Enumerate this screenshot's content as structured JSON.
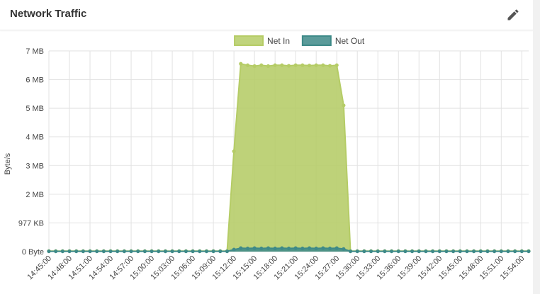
{
  "header": {
    "title": "Network Traffic",
    "edit_icon": "pencil-icon"
  },
  "chart_data": {
    "type": "area",
    "ylabel": "Byte/s",
    "ylim": [
      0,
      7000000
    ],
    "yticks": [
      {
        "value": 0,
        "label": "0 Byte"
      },
      {
        "value": 1000000,
        "label": "977 KB"
      },
      {
        "value": 2000000,
        "label": "2 MB"
      },
      {
        "value": 3000000,
        "label": "3 MB"
      },
      {
        "value": 4000000,
        "label": "4 MB"
      },
      {
        "value": 5000000,
        "label": "5 MB"
      },
      {
        "value": 6000000,
        "label": "6 MB"
      },
      {
        "value": 7000000,
        "label": "7 MB"
      }
    ],
    "x_start": "14:45:00",
    "x_end": "15:55:00",
    "x_step_seconds": 60,
    "xticks": [
      "14:45:00",
      "14:48:00",
      "14:51:00",
      "14:54:00",
      "14:57:00",
      "15:00:00",
      "15:03:00",
      "15:06:00",
      "15:09:00",
      "15:12:00",
      "15:15:00",
      "15:18:00",
      "15:21:00",
      "15:24:00",
      "15:27:00",
      "15:30:00",
      "15:33:00",
      "15:36:00",
      "15:39:00",
      "15:42:00",
      "15:45:00",
      "15:48:00",
      "15:51:00",
      "15:54:00"
    ],
    "legend_position": "top-center",
    "grid": true,
    "series": [
      {
        "name": "Net In",
        "color": "#b5cc66",
        "values": [
          20000,
          20000,
          20000,
          20000,
          20000,
          20000,
          20000,
          20000,
          20000,
          20000,
          20000,
          20000,
          20000,
          20000,
          20000,
          20000,
          20000,
          20000,
          20000,
          20000,
          20000,
          20000,
          20000,
          20000,
          20000,
          20000,
          20000,
          3500000,
          6550000,
          6500000,
          6470000,
          6500000,
          6470000,
          6500000,
          6500000,
          6480000,
          6500000,
          6500000,
          6490000,
          6500000,
          6500000,
          6480000,
          6500000,
          5100000,
          20000,
          20000,
          20000,
          20000,
          20000,
          20000,
          20000,
          20000,
          20000,
          20000,
          20000,
          20000,
          20000,
          20000,
          20000,
          20000,
          20000,
          20000,
          20000,
          20000,
          20000,
          20000,
          20000,
          20000,
          20000,
          20000,
          20000
        ]
      },
      {
        "name": "Net Out",
        "color": "#3e8a88",
        "values": [
          10000,
          10000,
          10000,
          10000,
          10000,
          10000,
          10000,
          10000,
          10000,
          10000,
          10000,
          10000,
          10000,
          10000,
          10000,
          10000,
          10000,
          10000,
          10000,
          10000,
          10000,
          10000,
          10000,
          10000,
          10000,
          10000,
          10000,
          70000,
          120000,
          110000,
          120000,
          110000,
          120000,
          110000,
          120000,
          110000,
          120000,
          110000,
          120000,
          110000,
          120000,
          110000,
          120000,
          90000,
          10000,
          10000,
          10000,
          10000,
          10000,
          10000,
          10000,
          10000,
          10000,
          10000,
          10000,
          10000,
          10000,
          10000,
          10000,
          10000,
          10000,
          10000,
          10000,
          10000,
          10000,
          10000,
          10000,
          10000,
          10000,
          10000,
          10000
        ]
      }
    ]
  }
}
